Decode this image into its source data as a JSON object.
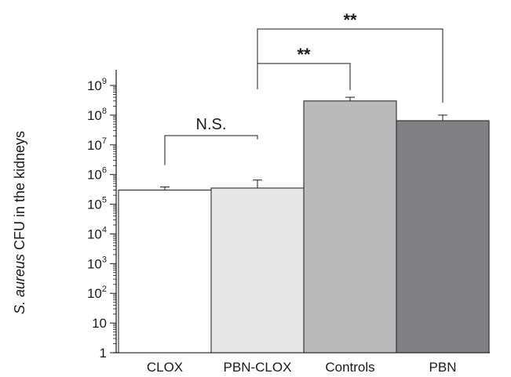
{
  "chart_data": {
    "type": "bar",
    "title": "",
    "xlabel": "",
    "ylabel": {
      "prefix_italic": "S. aureus",
      "suffix": " CFU in the kidneys"
    },
    "yscale": "log",
    "ylim": [
      1,
      1000000000
    ],
    "yticks": [
      {
        "value": 1,
        "base": "1",
        "exp": ""
      },
      {
        "value": 10,
        "base": "10",
        "exp": ""
      },
      {
        "value": 100,
        "base": "10",
        "exp": "2"
      },
      {
        "value": 1000,
        "base": "10",
        "exp": "3"
      },
      {
        "value": 10000,
        "base": "10",
        "exp": "4"
      },
      {
        "value": 100000,
        "base": "10",
        "exp": "5"
      },
      {
        "value": 1000000,
        "base": "10",
        "exp": "6"
      },
      {
        "value": 10000000,
        "base": "10",
        "exp": "7"
      },
      {
        "value": 100000000,
        "base": "10",
        "exp": "8"
      },
      {
        "value": 1000000000,
        "base": "10",
        "exp": "9"
      }
    ],
    "categories": [
      "CLOX",
      "PBN-CLOX",
      "Controls",
      "PBN"
    ],
    "values": [
      300000,
      350000,
      300000000,
      65000000
    ],
    "errors_upper": [
      380000,
      650000,
      400000000,
      100000000
    ],
    "colors": [
      "#ffffff",
      "#e6e7e8",
      "#b9babc",
      "#808184"
    ],
    "comparisons": [
      {
        "from": 0,
        "to": 1,
        "label": "N.S."
      },
      {
        "from": 1,
        "to": 2,
        "label": "**"
      },
      {
        "from": 1,
        "to": 3,
        "label": "**"
      }
    ],
    "grid": false,
    "legend": "none"
  }
}
